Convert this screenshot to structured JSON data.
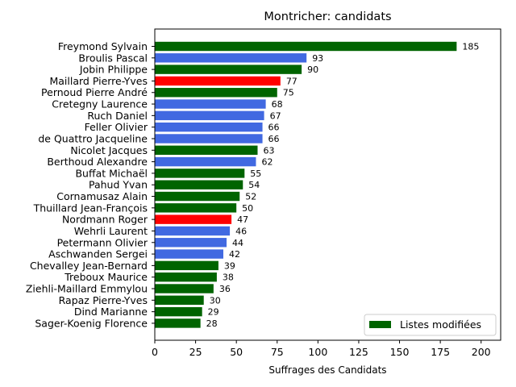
{
  "chart_data": {
    "type": "bar",
    "orientation": "horizontal",
    "title": "Montricher: candidats",
    "xlabel": "Suffrages des Candidats",
    "ylabel": "",
    "xlim": [
      0,
      212
    ],
    "xticks": [
      0,
      25,
      50,
      75,
      100,
      125,
      150,
      175,
      200
    ],
    "grid": false,
    "legend": {
      "placement": "lower-right",
      "entries": [
        {
          "label": "Listes modifiées",
          "color": "#006400"
        }
      ]
    },
    "bars": [
      {
        "name": "Freymond Sylvain",
        "value": 185,
        "color": "#006400"
      },
      {
        "name": "Broulis Pascal",
        "value": 93,
        "color": "#4169e1"
      },
      {
        "name": "Jobin Philippe",
        "value": 90,
        "color": "#006400"
      },
      {
        "name": "Maillard Pierre-Yves",
        "value": 77,
        "color": "#ff0000"
      },
      {
        "name": "Pernoud Pierre André",
        "value": 75,
        "color": "#006400"
      },
      {
        "name": "Cretegny Laurence",
        "value": 68,
        "color": "#4169e1"
      },
      {
        "name": "Ruch Daniel",
        "value": 67,
        "color": "#4169e1"
      },
      {
        "name": "Feller Olivier",
        "value": 66,
        "color": "#4169e1"
      },
      {
        "name": "de Quattro Jacqueline",
        "value": 66,
        "color": "#4169e1"
      },
      {
        "name": "Nicolet Jacques",
        "value": 63,
        "color": "#006400"
      },
      {
        "name": "Berthoud Alexandre",
        "value": 62,
        "color": "#4169e1"
      },
      {
        "name": "Buffat Michaël",
        "value": 55,
        "color": "#006400"
      },
      {
        "name": "Pahud Yvan",
        "value": 54,
        "color": "#006400"
      },
      {
        "name": "Cornamusaz Alain",
        "value": 52,
        "color": "#006400"
      },
      {
        "name": "Thuillard Jean-François",
        "value": 50,
        "color": "#006400"
      },
      {
        "name": "Nordmann Roger",
        "value": 47,
        "color": "#ff0000"
      },
      {
        "name": "Wehrli Laurent",
        "value": 46,
        "color": "#4169e1"
      },
      {
        "name": "Petermann Olivier",
        "value": 44,
        "color": "#4169e1"
      },
      {
        "name": "Aschwanden Sergei",
        "value": 42,
        "color": "#4169e1"
      },
      {
        "name": "Chevalley Jean-Bernard",
        "value": 39,
        "color": "#006400"
      },
      {
        "name": "Treboux Maurice",
        "value": 38,
        "color": "#006400"
      },
      {
        "name": "Ziehli-Maillard Emmylou",
        "value": 36,
        "color": "#006400"
      },
      {
        "name": "Rapaz Pierre-Yves",
        "value": 30,
        "color": "#006400"
      },
      {
        "name": "Dind Marianne",
        "value": 29,
        "color": "#006400"
      },
      {
        "name": "Sager-Koenig Florence",
        "value": 28,
        "color": "#006400"
      }
    ]
  }
}
